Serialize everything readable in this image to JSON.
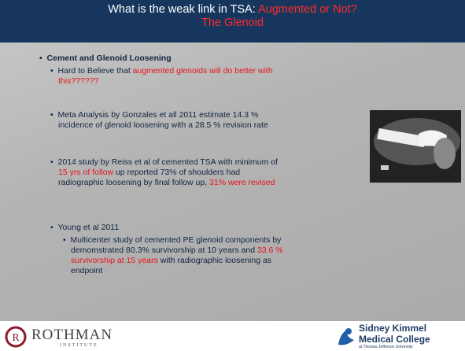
{
  "header": {
    "title": [
      [
        {
          "text": "What is the weak link in TSA: ",
          "color": "#ffffff"
        },
        {
          "text": "Augmented or Not?",
          "color": "#ff2a2a"
        }
      ],
      [
        {
          "text": "The Glenoid",
          "color": "#ff2a2a"
        }
      ]
    ]
  },
  "body": {
    "heading": "Cement and Glenoid Loosening",
    "bullets": [
      {
        "runs": [
          {
            "text": "Hard to Believe that "
          },
          {
            "text": "augmented glenoids will do better with this??????",
            "color": "#e8141b"
          }
        ]
      },
      {
        "runs": [
          {
            "text": "Meta Analysis by Gonzales et all 2011 estimate 14.3 % incidence of glenoid loosening with a 28.5 % revision rate"
          }
        ]
      },
      {
        "runs": [
          {
            "text": "2014 study by Reiss et al of cemented TSA with minimum of "
          },
          {
            "text": "15 yrs of follow",
            "color": "#e8141b"
          },
          {
            "text": " up reported 73% of shoulders had radiographic loosening by final follow up, "
          },
          {
            "text": "31% were revised",
            "color": "#e8141b"
          }
        ]
      },
      {
        "runs": [
          {
            "text": "Young et al 2011"
          }
        ],
        "sub": [
          {
            "runs": [
              {
                "text": "Multicenter study of cemented PE glenoid components by demomstrated 80.3% survivorship at 10 years and "
              },
              {
                "text": "33.6 % survivorship at 15 years",
                "color": "#e8141b"
              },
              {
                "text": " with radiographic loosening as endpoint"
              }
            ]
          }
        ]
      }
    ]
  },
  "footer": {
    "left": {
      "mark": "R",
      "name": "ROTHMAN",
      "subtitle": "INSTITUTE"
    },
    "right": {
      "line1": "Sidney Kimmel",
      "line2": "Medical College",
      "line3": "at Thomas Jefferson University"
    }
  }
}
